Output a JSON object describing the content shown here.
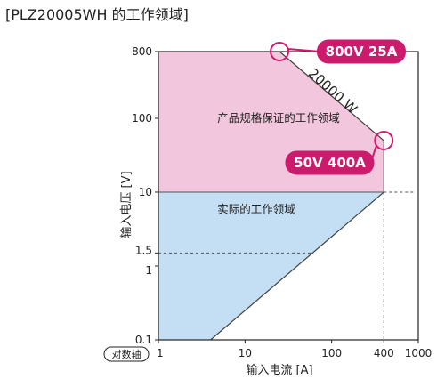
{
  "chart_data": {
    "type": "area",
    "title": "[PLZ20005WH 的工作领域]",
    "xlabel": "输入电流 [A]",
    "ylabel": "输入电压 [V]",
    "scale_badge": "对数轴",
    "x_scale": "log",
    "y_scale": "log",
    "xlim": [
      1,
      1000
    ],
    "ylim": [
      0.1,
      800
    ],
    "x_ticks": [
      {
        "value": 1,
        "label": "1"
      },
      {
        "value": 10,
        "label": "10"
      },
      {
        "value": 100,
        "label": "100"
      },
      {
        "value": 400,
        "label": "400"
      },
      {
        "value": 1000,
        "label": "1000"
      }
    ],
    "y_ticks": [
      {
        "value": 0.1,
        "label": "0.1"
      },
      {
        "value": 1,
        "label": "1"
      },
      {
        "value": 1.5,
        "label": "1.5"
      },
      {
        "value": 10,
        "label": "10"
      },
      {
        "value": 100,
        "label": "100"
      },
      {
        "value": 800,
        "label": "800"
      }
    ],
    "regions": [
      {
        "name": "产品规格保证的工作领域",
        "color": "#f2c6dc",
        "label_at": [
          4.8,
          90
        ],
        "points": [
          [
            1,
            10
          ],
          [
            1,
            800
          ],
          [
            25,
            800
          ],
          [
            400,
            50
          ],
          [
            400,
            10
          ]
        ]
      },
      {
        "name": "实际的工作领域",
        "color": "#c4dff3",
        "label_at": [
          4.8,
          5.2
        ],
        "points": [
          [
            1,
            0.1
          ],
          [
            1,
            10
          ],
          [
            400,
            10
          ],
          [
            4,
            0.1
          ]
        ]
      }
    ],
    "boundary": {
      "color": "#444444",
      "points": [
        [
          25,
          800
        ],
        [
          400,
          50
        ],
        [
          400,
          10
        ],
        [
          4,
          0.1
        ]
      ]
    },
    "dashed_lines": [
      {
        "points": [
          [
            1,
            1.5
          ],
          [
            60,
            1.5
          ]
        ]
      },
      {
        "points": [
          [
            400,
            10
          ],
          [
            900,
            10
          ]
        ]
      },
      {
        "points": [
          [
            400,
            10
          ],
          [
            400,
            0.1
          ]
        ]
      }
    ],
    "annotations": [
      {
        "text": "20000 W",
        "at": [
          95,
          210
        ],
        "rotate": 42
      }
    ],
    "callouts": [
      {
        "text": "800V 25A",
        "at": [
          25,
          800
        ],
        "box_at": [
          220,
          800
        ],
        "color": "#cc1a6c"
      },
      {
        "text": "50V 400A",
        "at": [
          400,
          50
        ],
        "box_at": [
          95,
          25
        ],
        "color": "#cc1a6c"
      }
    ],
    "grid": false,
    "legend": "none"
  }
}
